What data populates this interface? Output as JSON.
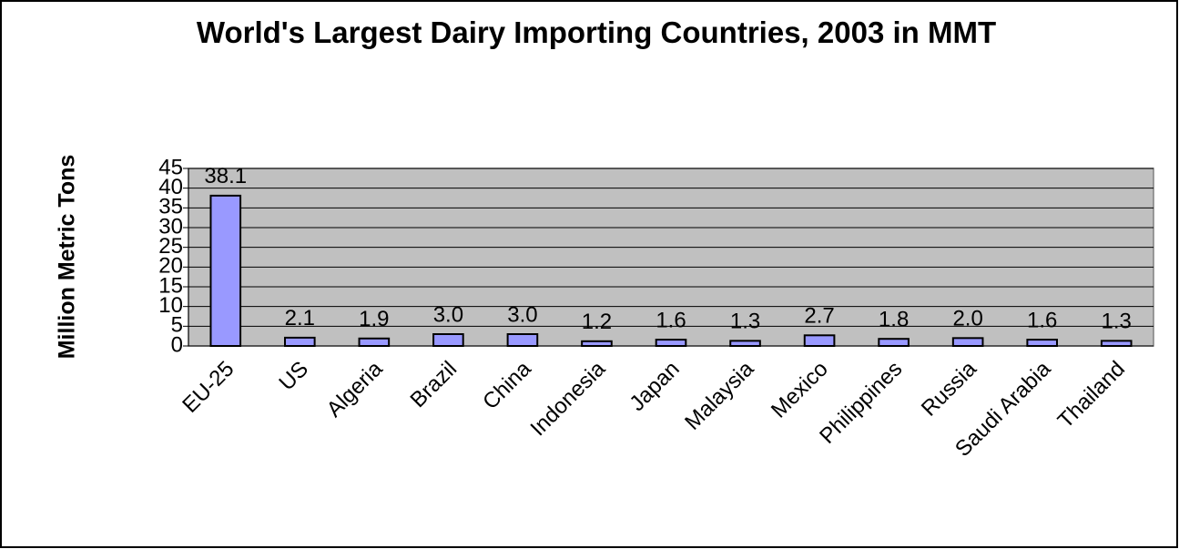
{
  "chart_data": {
    "type": "bar",
    "title": "World's Largest Dairy Importing Countries, 2003 in MMT",
    "y_label": "Million Metric Tons",
    "categories": [
      "EU-25",
      "US",
      "Algeria",
      "Brazil",
      "China",
      "Indonesia",
      "Japan",
      "Malaysia",
      "Mexico",
      "Philippines",
      "Russia",
      "Saudi Arabia",
      "Thailand"
    ],
    "values": [
      38.1,
      2.1,
      1.9,
      3.0,
      3.0,
      1.2,
      1.6,
      1.3,
      2.7,
      1.8,
      2.0,
      1.6,
      1.3
    ],
    "value_labels": [
      "38.1",
      "2.1",
      "1.9",
      "3.0",
      "3.0",
      "1.2",
      "1.6",
      "1.3",
      "2.7",
      "1.8",
      "2.0",
      "1.6",
      "1.3"
    ],
    "color": "#9999ff",
    "plot_background": "#c0c0c0",
    "ylim": [
      0,
      45
    ],
    "yticks": [
      0,
      5,
      10,
      15,
      20,
      25,
      30,
      35,
      40,
      45
    ],
    "grid": true
  }
}
